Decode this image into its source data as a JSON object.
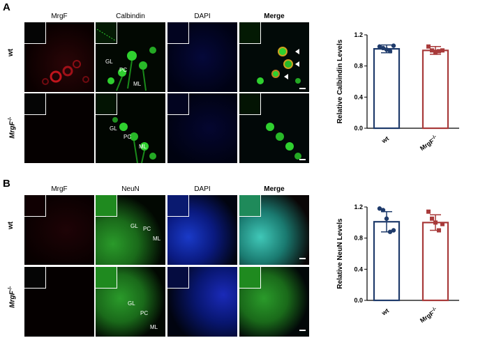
{
  "panel_a": {
    "letter": "A",
    "columns": [
      "MrgF",
      "Calbindin",
      "DAPI",
      "Merge"
    ],
    "rows": [
      "wt",
      "MrgF-/-"
    ],
    "row_labels": {
      "wt": "wt",
      "ko_base": "MrgF",
      "ko_sup": "-/-"
    },
    "region_labels": [
      "GL",
      "PC",
      "ML"
    ]
  },
  "panel_b": {
    "letter": "B",
    "columns": [
      "MrgF",
      "NeuN",
      "DAPI",
      "Merge"
    ],
    "rows": [
      "wt",
      "MrgF-/-"
    ],
    "row_labels": {
      "wt": "wt",
      "ko_base": "MrgF",
      "ko_sup": "-/-"
    },
    "region_labels": [
      "GL",
      "PC",
      "ML"
    ]
  },
  "colors": {
    "red_channel": "#c0141c",
    "green_channel": "#2fd02f",
    "blue_channel": "#2030d0",
    "wt_bar": "#1f3b6b",
    "ko_bar": "#a83a3a"
  },
  "chart_data": [
    {
      "type": "bar",
      "ylabel": "Relative Calbindin Levels",
      "categories": [
        "wt",
        "MrgF-/-"
      ],
      "category_labels": {
        "wt": "wt",
        "ko_base": "MrgF",
        "ko_sup": "-/-"
      },
      "values": [
        1.02,
        1.0
      ],
      "errors": [
        0.05,
        0.05
      ],
      "points": [
        [
          1.05,
          1.03,
          1.01,
          0.99,
          1.06
        ],
        [
          1.05,
          1.0,
          0.97,
          0.99,
          1.0
        ]
      ],
      "ylim": [
        0.0,
        1.2
      ],
      "yticks": [
        "0.0",
        "0.4",
        "0.8",
        "1.2"
      ]
    },
    {
      "type": "bar",
      "ylabel": "Relative NeuN Levels",
      "categories": [
        "wt",
        "MrgF-/-"
      ],
      "category_labels": {
        "wt": "wt",
        "ko_base": "MrgF",
        "ko_sup": "-/-"
      },
      "values": [
        1.01,
        1.0
      ],
      "errors": [
        0.13,
        0.1
      ],
      "points": [
        [
          1.18,
          1.16,
          1.05,
          0.88,
          0.9
        ],
        [
          1.14,
          1.05,
          1.0,
          0.9,
          0.98
        ]
      ],
      "ylim": [
        0.0,
        1.2
      ],
      "yticks": [
        "0.0",
        "0.4",
        "0.8",
        "1.2"
      ]
    }
  ]
}
